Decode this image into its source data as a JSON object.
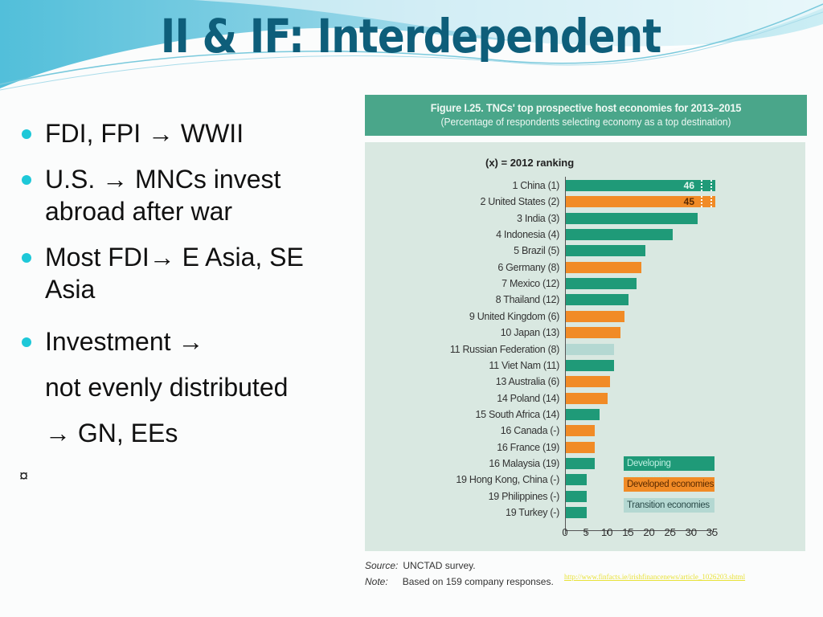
{
  "slide": {
    "title": "II & IF: Interdependent",
    "bullets": [
      {
        "lines": [
          "FDI, FPI → WWII"
        ],
        "dot": true
      },
      {
        "lines": [
          "U.S. → MNCs invest",
          "abroad after war"
        ],
        "dot": true
      },
      {
        "lines": [
          "Most FDI→ E Asia, SE",
          "Asia"
        ],
        "dot": true
      },
      {
        "lines": [
          "Investment →",
          "not evenly distributed",
          "→ GN, EEs"
        ],
        "dot": true
      }
    ],
    "stray_symbol": "¤",
    "source_link": "http://www.finfacts.ie/irishfinancenews/article_1026203.shtml"
  },
  "colors": {
    "title": "#0e5e7a",
    "bullet": "#1ec8d8",
    "developing": "#1f9a78",
    "developed": "#f18b26",
    "transition": "#b4d8d2",
    "chart_header": "#4aa68a",
    "chart_bg": "#d9e8e1"
  },
  "chart_data": {
    "type": "bar",
    "orientation": "horizontal",
    "title": "Figure I.25. TNCs' top prospective host economies for 2013–2015",
    "subtitle": "(Percentage of respondents selecting economy as a top destination)",
    "annotation": "(x) = 2012 ranking",
    "xlabel": "",
    "ylabel": "",
    "xlim": [
      0,
      35
    ],
    "xticks": [
      0,
      5,
      10,
      15,
      20,
      25,
      30,
      35
    ],
    "grid": false,
    "legend": [
      "Developing economies",
      "Developed economies",
      "Transition economies"
    ],
    "legend_position": "lower right",
    "categories": [
      "1 China (1)",
      "2 United States (2)",
      "3 India (3)",
      "4 Indonesia (4)",
      "5 Brazil (5)",
      "6 Germany (8)",
      "7 Mexico (12)",
      "8 Thailand (12)",
      "9 United Kingdom (6)",
      "10 Japan (13)",
      "11 Russian Federation (8)",
      "11 Viet Nam (11)",
      "13 Australia (6)",
      "14 Poland (14)",
      "15 South Africa (14)",
      "16 Canada (-)",
      "16 France (19)",
      "16 Malaysia (19)",
      "19 Hong Kong, China (-)",
      "19 Philippines (-)",
      "19 Turkey (-)"
    ],
    "values": [
      46,
      45,
      31.5,
      25.5,
      19,
      18,
      17,
      15,
      14,
      13,
      11.5,
      11.5,
      10.5,
      10,
      8,
      7,
      7,
      7,
      5,
      5,
      5
    ],
    "groups": [
      "developing",
      "developed",
      "developing",
      "developing",
      "developing",
      "developed",
      "developing",
      "developing",
      "developed",
      "developed",
      "transition",
      "developing",
      "developed",
      "developed",
      "developing",
      "developed",
      "developed",
      "developing",
      "developing",
      "developing",
      "developing"
    ],
    "data_labels": {
      "0": "46",
      "1": "45"
    },
    "axis_break_bars": [
      0,
      1
    ],
    "source": "Source: UNCTAD survey.",
    "note": "Note:  Based on 159 company responses."
  },
  "chart_text": {
    "title": "Figure I.25. TNCs' top prospective host economies for 2013–2015",
    "subtitle": "(Percentage of respondents selecting economy as a top destination)",
    "annotation": "(x) = 2012 ranking",
    "legend_developing": "Developing economies",
    "legend_developed": "Developed economies",
    "legend_transition": "Transition economies",
    "source_label": "Source:",
    "source_text": "UNCTAD survey.",
    "note_label": "Note:",
    "note_text": "Based on 159 company responses."
  }
}
